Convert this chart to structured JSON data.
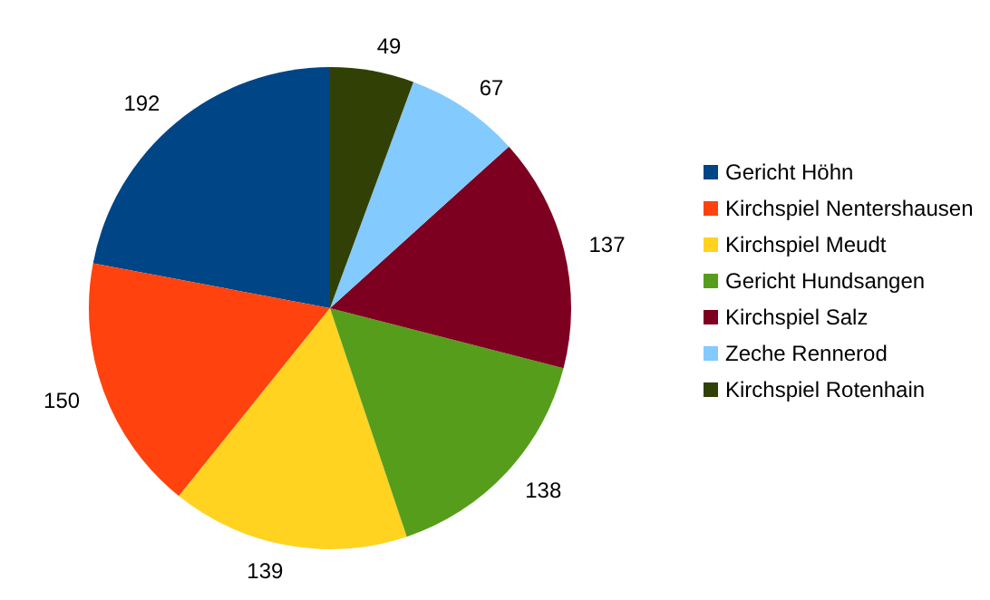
{
  "chart_data": {
    "type": "pie",
    "categories": [
      "Gericht Höhn",
      "Kirchspiel Nentershausen",
      "Kirchspiel Meudt",
      "Gericht Hundsangen",
      "Kirchspiel Salz",
      "Zeche Rennerod",
      "Kirchspiel Rotenhain"
    ],
    "values": [
      192,
      150,
      139,
      138,
      137,
      67,
      49
    ],
    "colors": [
      "#004586",
      "#ff420e",
      "#ffd320",
      "#579d1c",
      "#7e0021",
      "#83caff",
      "#314004"
    ],
    "data_labels": true,
    "legend": "right"
  }
}
